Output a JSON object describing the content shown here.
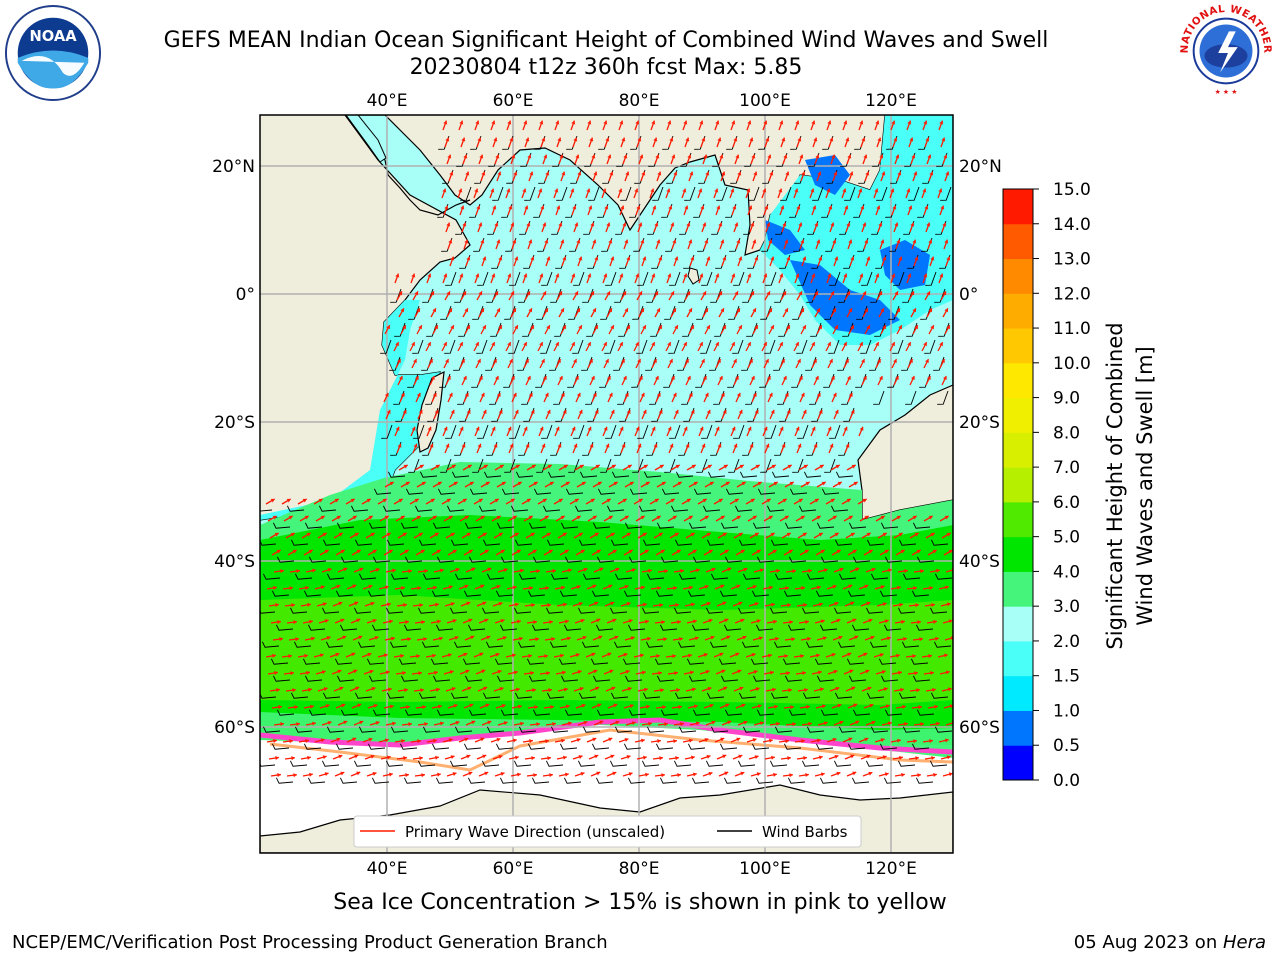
{
  "title_line1": "GEFS MEAN Indian Ocean Significant Height of Combined Wind Waves and Swell",
  "title_line2": "20230804 t12z 360h fcst   Max: 5.85",
  "map": {
    "lon_labels": [
      "40°E",
      "60°E",
      "80°E",
      "100°E",
      "120°E"
    ],
    "lat_labels": [
      "20°N",
      "0°",
      "20°S",
      "40°S",
      "60°S"
    ],
    "legend": {
      "wave_direction": "Primary Wave Direction (unscaled)",
      "wind_barbs": "Wind Barbs"
    },
    "colors": {
      "land": "#efeddc",
      "ice": "#ffffff",
      "wave_arrow": "#ff1a00",
      "barb": "#000000"
    }
  },
  "colorbar": {
    "label_line1": "Significant Height of Combined",
    "label_line2": "Wind Waves and Swell [m]",
    "ticks": [
      "0.0",
      "0.5",
      "1.0",
      "1.5",
      "2.0",
      "3.0",
      "4.0",
      "5.0",
      "6.0",
      "7.0",
      "8.0",
      "9.0",
      "10.0",
      "11.0",
      "12.0",
      "13.0",
      "14.0",
      "15.0"
    ],
    "colors": [
      "#0000ff",
      "#0076ff",
      "#00eaff",
      "#49fff7",
      "#a7fff7",
      "#45f57b",
      "#00e600",
      "#4fea00",
      "#b6f000",
      "#d8f000",
      "#f0ef00",
      "#ffe800",
      "#ffc800",
      "#ffac00",
      "#ff8a00",
      "#ff5a00",
      "#ff1a00"
    ]
  },
  "sea_ice_note": "Sea Ice Concentration > 15% is shown in pink to yellow",
  "footer_left": "NCEP/EMC/Verification Post Processing Product Generation Branch",
  "footer_right_prefix": "05 Aug 2023 on ",
  "footer_right_host": "Hera",
  "logos": {
    "noaa_text": "NOAA",
    "nws_text": "NATIONAL WEATHER SERVICE"
  }
}
